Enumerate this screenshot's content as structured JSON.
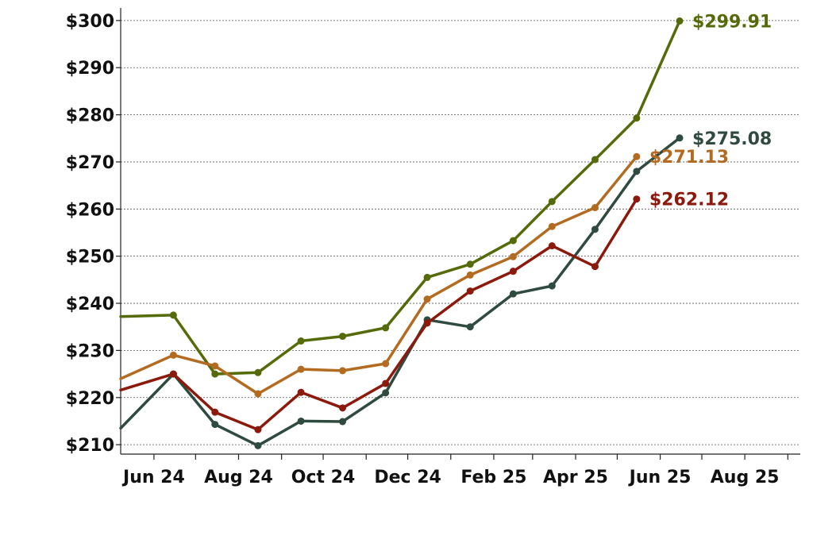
{
  "chart_data": {
    "type": "line",
    "title": "",
    "xlabel": "",
    "ylabel": "",
    "ylim": [
      208,
      302
    ],
    "xlim": [
      "2024-05-08",
      "2025-09-10"
    ],
    "grid": true,
    "yticks": [
      210,
      220,
      230,
      240,
      250,
      260,
      270,
      280,
      290,
      300
    ],
    "ytick_labels": [
      "$210",
      "$220",
      "$230",
      "$240",
      "$250",
      "$260",
      "$270",
      "$280",
      "$290",
      "$300"
    ],
    "xticks": [
      "2024-06-01",
      "2024-07-01",
      "2024-08-01",
      "2024-09-01",
      "2024-10-01",
      "2024-11-01",
      "2024-12-01",
      "2025-01-01",
      "2025-02-01",
      "2025-03-01",
      "2025-04-01",
      "2025-05-01",
      "2025-06-01",
      "2025-07-01",
      "2025-08-01",
      "2025-09-01"
    ],
    "xtick_labels": [
      "Jun 24",
      "",
      "Aug 24",
      "",
      "Oct 24",
      "",
      "Dec 24",
      "",
      "Feb 25",
      "",
      "Apr 25",
      "",
      "Jun 25",
      "",
      "Aug 25",
      ""
    ],
    "series": [
      {
        "color": "#556b0a",
        "end_label": "$299.91",
        "points": [
          [
            "2024-05-08",
            237.2
          ],
          [
            "2024-06-15",
            237.5
          ],
          [
            "2024-07-15",
            225.0
          ],
          [
            "2024-08-15",
            225.3
          ],
          [
            "2024-09-15",
            232.0
          ],
          [
            "2024-10-15",
            233.0
          ],
          [
            "2024-11-15",
            234.8
          ],
          [
            "2024-12-15",
            245.5
          ],
          [
            "2025-01-15",
            248.3
          ],
          [
            "2025-02-15",
            253.3
          ],
          [
            "2025-03-15",
            261.6
          ],
          [
            "2025-04-15",
            270.5
          ],
          [
            "2025-05-15",
            279.3
          ],
          [
            "2025-06-15",
            299.91
          ]
        ]
      },
      {
        "color": "#2f4a3f",
        "end_label": "$275.08",
        "points": [
          [
            "2024-05-08",
            213.5
          ],
          [
            "2024-06-15",
            225.0
          ],
          [
            "2024-07-15",
            214.3
          ],
          [
            "2024-08-15",
            209.8
          ],
          [
            "2024-09-15",
            215.0
          ],
          [
            "2024-10-15",
            214.9
          ],
          [
            "2024-11-15",
            221.0
          ],
          [
            "2024-12-15",
            236.5
          ],
          [
            "2025-01-15",
            235.0
          ],
          [
            "2025-02-15",
            242.0
          ],
          [
            "2025-03-15",
            243.7
          ],
          [
            "2025-04-15",
            255.7
          ],
          [
            "2025-05-15",
            268.0
          ],
          [
            "2025-06-15",
            275.08
          ]
        ]
      },
      {
        "color": "#b36b22",
        "end_label": "$271.13",
        "points": [
          [
            "2024-05-08",
            224.0
          ],
          [
            "2024-06-15",
            229.0
          ],
          [
            "2024-07-15",
            226.7
          ],
          [
            "2024-08-15",
            220.8
          ],
          [
            "2024-09-15",
            226.0
          ],
          [
            "2024-10-15",
            225.7
          ],
          [
            "2024-11-15",
            227.2
          ],
          [
            "2024-12-15",
            240.9
          ],
          [
            "2025-01-15",
            246.0
          ],
          [
            "2025-02-15",
            249.9
          ],
          [
            "2025-03-15",
            256.3
          ],
          [
            "2025-04-15",
            260.3
          ],
          [
            "2025-05-15",
            271.13
          ]
        ]
      },
      {
        "color": "#8b1a0c",
        "end_label": "$262.12",
        "points": [
          [
            "2024-05-08",
            221.6
          ],
          [
            "2024-06-15",
            225.0
          ],
          [
            "2024-07-15",
            216.9
          ],
          [
            "2024-08-15",
            213.2
          ],
          [
            "2024-09-15",
            221.1
          ],
          [
            "2024-10-15",
            217.8
          ],
          [
            "2024-11-15",
            223.0
          ],
          [
            "2024-12-15",
            235.8
          ],
          [
            "2025-01-15",
            242.6
          ],
          [
            "2025-02-15",
            246.8
          ],
          [
            "2025-03-15",
            252.2
          ],
          [
            "2025-04-15",
            247.8
          ],
          [
            "2025-05-15",
            262.12
          ]
        ]
      }
    ]
  }
}
